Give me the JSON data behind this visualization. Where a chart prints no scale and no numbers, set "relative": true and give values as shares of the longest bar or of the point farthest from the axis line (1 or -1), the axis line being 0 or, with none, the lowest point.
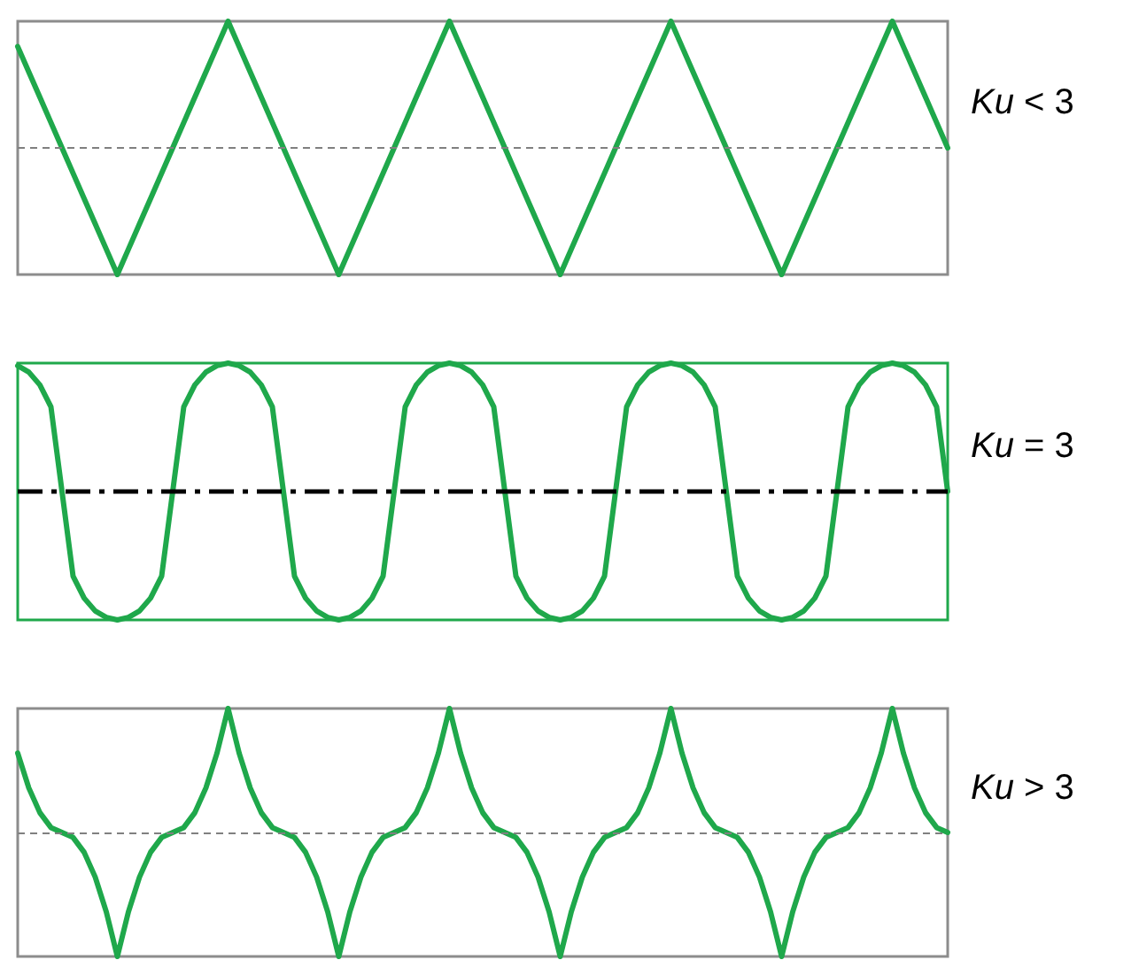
{
  "chart_data": [
    {
      "type": "line",
      "annotations": [
        "Ku < 3"
      ],
      "relative": true,
      "tick_labels": false,
      "line_style": "solid",
      "grid": false,
      "categories": [
        null,
        null,
        null,
        null,
        null,
        null,
        null,
        null,
        null,
        null,
        null,
        null,
        null,
        null,
        null,
        null,
        null,
        null,
        null,
        null,
        null,
        null,
        null,
        null,
        null,
        null,
        null,
        null,
        null,
        null,
        null,
        null,
        null,
        null,
        null,
        null,
        null,
        null,
        null,
        null,
        null,
        null,
        null,
        null,
        null,
        null,
        null,
        null,
        null,
        null,
        null,
        null,
        null,
        null,
        null,
        null,
        null,
        null,
        null,
        null,
        null,
        null,
        null,
        null,
        null,
        null,
        null,
        null,
        null,
        null,
        null,
        null,
        null,
        null,
        null,
        null,
        null,
        null,
        null,
        null,
        null,
        null,
        null,
        null,
        null
      ],
      "series": [
        {
          "color": "#1fa84b",
          "values": [
            0.8,
            0.6,
            0.4,
            0.2,
            0,
            -0.2,
            -0.4,
            -0.6,
            -0.8,
            -1,
            -0.8,
            -0.6,
            -0.4,
            -0.2,
            0,
            0.2,
            0.4,
            0.6,
            0.8,
            1,
            0.8,
            0.6,
            0.4,
            0.2,
            0,
            -0.2,
            -0.4,
            -0.6,
            -0.8,
            -1,
            -0.8,
            -0.6,
            -0.4,
            -0.2,
            0,
            0.2,
            0.4,
            0.6,
            0.8,
            1,
            0.8,
            0.6,
            0.4,
            0.2,
            0,
            -0.2,
            -0.4,
            -0.6,
            -0.8,
            -1,
            -0.8,
            -0.6,
            -0.4,
            -0.2,
            0,
            0.2,
            0.4,
            0.6,
            0.8,
            1,
            0.8,
            0.6,
            0.4,
            0.2,
            0,
            -0.2,
            -0.4,
            -0.6,
            -0.8,
            -1,
            -0.8,
            -0.6,
            -0.4,
            -0.2,
            0,
            0.2,
            0.4,
            0.6,
            0.8,
            1,
            0.8,
            0.6,
            0.4,
            0.2,
            0
          ]
        }
      ],
      "ref_lines": [
        {
          "axis": "y",
          "value": 0,
          "color": "#808080",
          "line_style": "dashed"
        }
      ]
    },
    {
      "type": "line",
      "annotations": [
        "Ku = 3"
      ],
      "relative": true,
      "tick_labels": false,
      "line_style": "solid",
      "grid": false,
      "categories": [
        null,
        null,
        null,
        null,
        null,
        null,
        null,
        null,
        null,
        null,
        null,
        null,
        null,
        null,
        null,
        null,
        null,
        null,
        null,
        null,
        null,
        null,
        null,
        null,
        null,
        null,
        null,
        null,
        null,
        null,
        null,
        null,
        null,
        null,
        null,
        null,
        null,
        null,
        null,
        null,
        null,
        null,
        null,
        null,
        null,
        null,
        null,
        null,
        null,
        null,
        null,
        null,
        null,
        null,
        null,
        null,
        null,
        null,
        null,
        null,
        null,
        null,
        null,
        null,
        null,
        null,
        null,
        null,
        null,
        null,
        null,
        null,
        null,
        null,
        null,
        null,
        null,
        null,
        null,
        null,
        null,
        null,
        null,
        null,
        null
      ],
      "series": [
        {
          "color": "#1fa84b",
          "values": [
            0.98,
            0.93,
            0.83,
            0.66,
            0,
            -0.66,
            -0.83,
            -0.93,
            -0.98,
            -1,
            -0.98,
            -0.93,
            -0.83,
            -0.66,
            0,
            0.66,
            0.83,
            0.93,
            0.98,
            1,
            0.98,
            0.93,
            0.83,
            0.66,
            0,
            -0.66,
            -0.83,
            -0.93,
            -0.98,
            -1,
            -0.98,
            -0.93,
            -0.83,
            -0.66,
            0,
            0.66,
            0.83,
            0.93,
            0.98,
            1,
            0.98,
            0.93,
            0.83,
            0.66,
            0,
            -0.66,
            -0.83,
            -0.93,
            -0.98,
            -1,
            -0.98,
            -0.93,
            -0.83,
            -0.66,
            0,
            0.66,
            0.83,
            0.93,
            0.98,
            1,
            0.98,
            0.93,
            0.83,
            0.66,
            0,
            -0.66,
            -0.83,
            -0.93,
            -0.98,
            -1,
            -0.98,
            -0.93,
            -0.83,
            -0.66,
            0,
            0.66,
            0.83,
            0.93,
            0.98,
            1,
            0.98,
            0.93,
            0.83,
            0.66,
            0
          ]
        }
      ],
      "ref_lines": [
        {
          "axis": "y",
          "value": 0,
          "color": "#000000",
          "line_style": "dashdot"
        }
      ]
    },
    {
      "type": "line",
      "annotations": [
        "Ku > 3"
      ],
      "relative": true,
      "tick_labels": false,
      "line_style": "solid",
      "grid": false,
      "categories": [
        null,
        null,
        null,
        null,
        null,
        null,
        null,
        null,
        null,
        null,
        null,
        null,
        null,
        null,
        null,
        null,
        null,
        null,
        null,
        null,
        null,
        null,
        null,
        null,
        null,
        null,
        null,
        null,
        null,
        null,
        null,
        null,
        null,
        null,
        null,
        null,
        null,
        null,
        null,
        null,
        null,
        null,
        null,
        null,
        null,
        null,
        null,
        null,
        null,
        null,
        null,
        null,
        null,
        null,
        null,
        null,
        null,
        null,
        null,
        null,
        null,
        null,
        null,
        null,
        null,
        null,
        null,
        null,
        null,
        null,
        null,
        null,
        null,
        null,
        null,
        null,
        null,
        null,
        null,
        null,
        null,
        null,
        null,
        null,
        null
      ],
      "series": [
        {
          "color": "#1fa84b",
          "values": [
            0.64,
            0.36,
            0.16,
            0.04,
            0,
            -0.04,
            -0.16,
            -0.36,
            -0.64,
            -1,
            -0.64,
            -0.36,
            -0.16,
            -0.04,
            0,
            0.04,
            0.16,
            0.36,
            0.64,
            1,
            0.64,
            0.36,
            0.16,
            0.04,
            0,
            -0.04,
            -0.16,
            -0.36,
            -0.64,
            -1,
            -0.64,
            -0.36,
            -0.16,
            -0.04,
            0,
            0.04,
            0.16,
            0.36,
            0.64,
            1,
            0.64,
            0.36,
            0.16,
            0.04,
            0,
            -0.04,
            -0.16,
            -0.36,
            -0.64,
            -1,
            -0.64,
            -0.36,
            -0.16,
            -0.04,
            0,
            0.04,
            0.16,
            0.36,
            0.64,
            1,
            0.64,
            0.36,
            0.16,
            0.04,
            0,
            -0.04,
            -0.16,
            -0.36,
            -0.64,
            -1,
            -0.64,
            -0.36,
            -0.16,
            -0.04,
            0,
            0.04,
            0.16,
            0.36,
            0.64,
            1,
            0.64,
            0.36,
            0.16,
            0.04,
            0
          ]
        }
      ],
      "ref_lines": [
        {
          "axis": "y",
          "value": 0,
          "color": "#808080",
          "line_style": "dashed"
        }
      ]
    }
  ]
}
